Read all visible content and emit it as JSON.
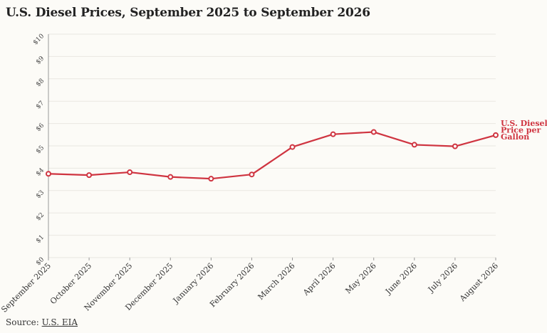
{
  "title": "U.S. Diesel Prices, September 2025 to September 2026",
  "source": {
    "prefix": "Source:",
    "link_text": "U.S. EIA"
  },
  "colors": {
    "series": "#cf3440",
    "grid": "#e9e7e1",
    "axis": "#999999"
  },
  "chart_data": {
    "type": "line",
    "title": "U.S. Diesel Prices, September 2025 to September 2026",
    "xlabel": "",
    "ylabel": "",
    "x": [
      "September 2025",
      "October 2025",
      "November 2025",
      "December 2025",
      "January 2026",
      "February 2026",
      "March 2026",
      "April 2026",
      "May 2026",
      "June 2026",
      "July 2026",
      "August 2026"
    ],
    "y_ticks": [
      "$0",
      "$1",
      "$2",
      "$3",
      "$4",
      "$5",
      "$6",
      "$7",
      "$8",
      "$9",
      "$10"
    ],
    "ylim": [
      0,
      10
    ],
    "grid": true,
    "series": [
      {
        "name": "U.S. Diesel Price per Gallon",
        "label_lines": [
          "U.S. Diesel",
          "Price per",
          "Gallon"
        ],
        "values": [
          3.75,
          3.69,
          3.82,
          3.61,
          3.53,
          3.72,
          4.95,
          5.52,
          5.62,
          5.05,
          4.98,
          5.48
        ]
      }
    ]
  }
}
